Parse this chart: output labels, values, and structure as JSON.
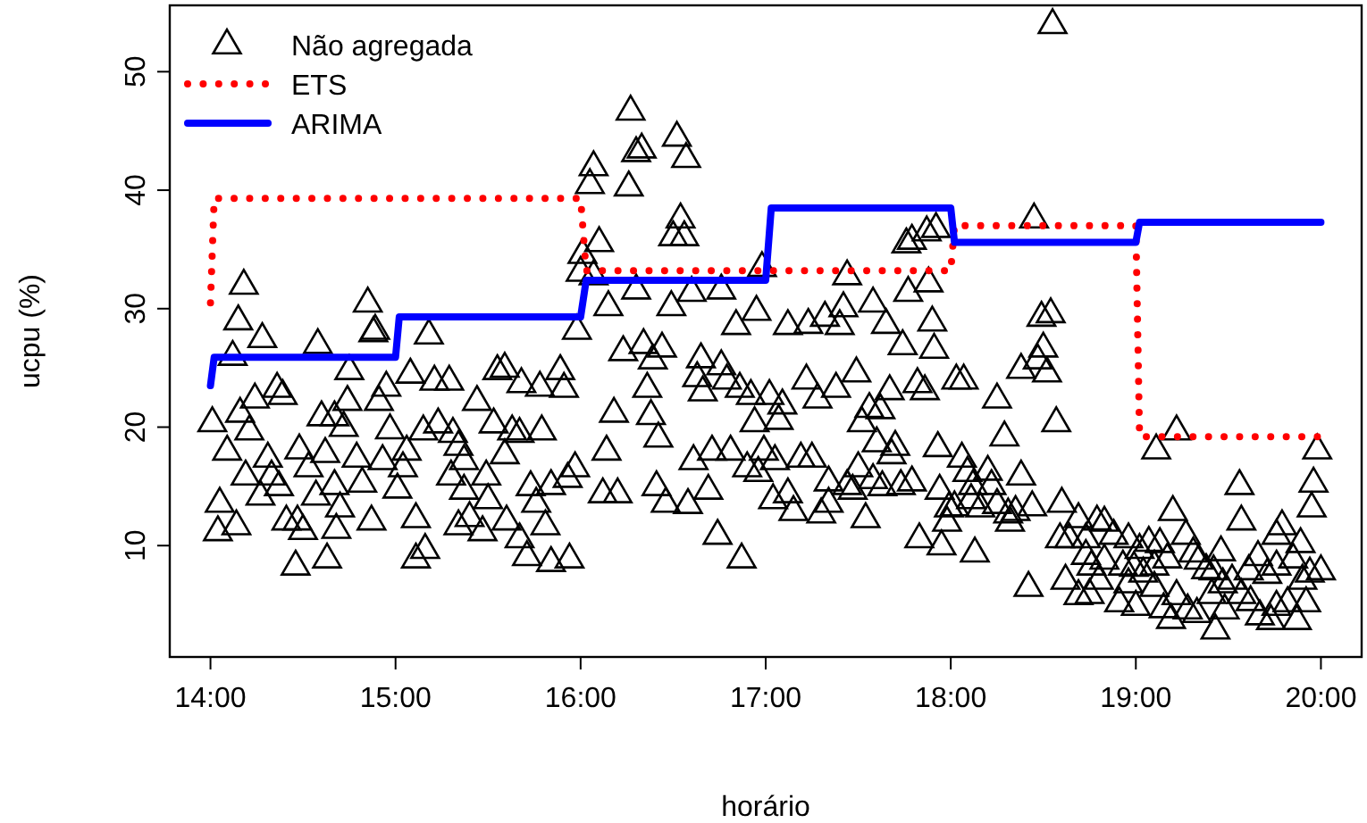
{
  "chart_data": {
    "type": "scatter",
    "xlabel": "horário",
    "ylabel": "ucpu (%)",
    "xlim": [
      13.78,
      20.22
    ],
    "ylim": [
      0.6,
      55.6
    ],
    "xticks": [
      {
        "value": 14,
        "label": "14:00"
      },
      {
        "value": 15,
        "label": "15:00"
      },
      {
        "value": 16,
        "label": "16:00"
      },
      {
        "value": 17,
        "label": "17:00"
      },
      {
        "value": 18,
        "label": "18:00"
      },
      {
        "value": 19,
        "label": "19:00"
      },
      {
        "value": 20,
        "label": "20:00"
      }
    ],
    "yticks": [
      10,
      20,
      30,
      40,
      50
    ],
    "grid": false,
    "legend": "top left",
    "series": [
      {
        "name": "Não agregada",
        "marker": "triangle",
        "color": "#000000",
        "x": [
          14.18,
          14.15,
          14.85,
          14.89,
          14.12,
          14.28,
          14.58,
          14.88,
          15.18,
          14.01,
          14.09,
          14.05,
          14.04,
          14.14,
          14.16,
          14.24,
          14.21,
          14.36,
          14.39,
          14.19,
          14.27,
          14.31,
          14.33,
          14.37,
          14.41,
          14.47,
          14.5,
          14.46,
          14.63,
          14.48,
          14.53,
          14.57,
          14.62,
          14.6,
          14.67,
          14.72,
          14.75,
          14.74,
          14.67,
          14.7,
          14.68,
          14.79,
          14.82,
          14.87,
          14.91,
          14.95,
          14.97,
          14.93,
          15.01,
          15.04,
          15.06,
          15.08,
          15.11,
          15.16,
          15.11,
          15.15,
          15.21,
          15.23,
          15.29,
          15.31,
          15.34,
          15.37,
          15.3,
          15.37,
          15.34,
          15.4,
          15.47,
          15.44,
          15.49,
          15.5,
          15.53,
          15.55,
          15.59,
          15.59,
          15.63,
          15.67,
          15.6,
          15.67,
          15.71,
          15.68,
          15.78,
          15.79,
          15.73,
          15.76,
          15.81,
          15.84,
          15.84,
          15.89,
          15.91,
          15.93,
          15.98,
          15.97,
          15.94,
          16.12,
          16.2,
          16.14,
          16.18,
          16.23,
          16.34,
          16.44,
          16.39,
          16.36,
          16.38,
          16.42,
          16.41,
          16.46,
          16.58,
          16.61,
          16.65,
          16.63,
          16.66,
          16.69,
          16.71,
          16.74,
          16.76,
          16.79,
          16.81,
          16.87,
          16.86,
          16.92,
          16.94,
          16.9,
          16.96,
          16.99,
          17.02,
          17.05,
          17.04,
          17.07,
          17.09,
          17.12,
          17.15,
          17.19,
          17.22,
          17.25,
          17.28,
          17.3,
          17.34,
          17.34,
          17.38,
          17.44,
          17.47,
          17.49,
          17.5,
          17.52,
          17.54,
          17.56,
          17.58,
          17.6,
          17.62,
          17.63,
          17.67,
          17.68,
          17.7,
          17.73,
          17.74,
          17.79,
          17.82,
          17.83,
          17.86,
          17.91,
          17.93,
          17.94,
          17.95,
          17.98,
          17.99,
          18.03,
          16.27,
          16.52,
          16.57,
          16.3,
          16.33,
          16.07,
          16.05,
          16.26,
          16.54,
          16.5,
          16.56,
          16.1,
          16.01,
          16.0,
          16.07,
          16.15,
          16.3,
          16.49,
          16.6,
          16.76,
          16.95,
          16.98,
          16.84,
          17.12,
          17.23,
          17.32,
          17.4,
          17.42,
          17.44,
          17.58,
          17.65,
          17.77,
          17.88,
          17.9,
          17.76,
          17.79,
          17.87,
          17.92,
          18.55,
          18.45,
          18.54,
          18.49,
          18.5,
          18.47,
          18.52,
          18.38,
          18.07,
          18.25,
          18.57,
          18.29,
          18.06,
          18.09,
          18.2,
          18.12,
          18.22,
          18.38,
          18.11,
          18.16,
          18.25,
          18.31,
          18.44,
          18.35,
          18.02,
          18.13,
          18.32,
          18.42,
          18.6,
          18.69,
          18.79,
          18.83,
          18.64,
          18.73,
          18.88,
          18.96,
          18.59,
          18.73,
          18.83,
          18.76,
          18.93,
          18.62,
          18.8,
          18.69,
          18.75,
          18.96,
          18.91,
          19.0,
          19.02,
          19.07,
          19.1,
          19.13,
          18.99,
          19.04,
          19.1,
          19.11,
          19.22,
          19.2,
          19.27,
          19.17,
          19.22,
          19.15,
          19.19,
          19.31,
          19.34,
          19.38,
          19.28,
          19.33,
          19.41,
          19.46,
          19.42,
          19.47,
          19.48,
          19.43,
          19.56,
          19.57,
          19.52,
          19.57,
          19.61,
          19.62,
          19.66,
          19.67,
          19.71,
          19.73,
          19.76,
          19.76,
          19.79,
          19.76,
          19.82,
          19.85,
          19.89,
          19.87,
          19.92,
          19.9,
          19.94,
          20.0,
          19.95,
          19.96,
          19.98
        ],
        "values": [
          32.0,
          29.0,
          30.5,
          28.2,
          26.0,
          27.5,
          27.0,
          28.0,
          27.8,
          20.4,
          18.0,
          13.6,
          11.2,
          11.7,
          21.2,
          22.4,
          19.7,
          23.3,
          22.7,
          15.9,
          14.2,
          17.4,
          15.9,
          15.0,
          12.1,
          12.1,
          11.3,
          8.3,
          8.9,
          18.1,
          16.6,
          14.2,
          17.8,
          20.9,
          20.9,
          20.0,
          24.8,
          22.2,
          15.1,
          13.2,
          11.4,
          17.4,
          15.3,
          12.1,
          22.2,
          23.4,
          19.8,
          17.2,
          14.8,
          16.6,
          18.0,
          24.5,
          8.9,
          9.7,
          12.3,
          19.7,
          23.9,
          20.3,
          23.9,
          19.5,
          18.4,
          17.2,
          15.9,
          14.7,
          11.7,
          12.4,
          11.2,
          22.2,
          15.9,
          13.9,
          20.3,
          24.8,
          25.0,
          17.7,
          19.7,
          19.5,
          12.1,
          10.6,
          9.1,
          23.7,
          23.4,
          19.7,
          15.0,
          13.6,
          11.7,
          8.6,
          15.1,
          24.8,
          23.3,
          15.7,
          28.2,
          16.6,
          8.9,
          14.4,
          14.4,
          18.0,
          21.2,
          26.4,
          27.0,
          26.7,
          25.7,
          23.3,
          21.0,
          19.1,
          15.0,
          13.6,
          13.5,
          17.2,
          25.8,
          24.2,
          23.0,
          14.7,
          18.0,
          10.9,
          25.2,
          24.0,
          18.0,
          8.9,
          23.3,
          22.7,
          20.4,
          16.6,
          16.2,
          18.0,
          22.7,
          17.2,
          13.9,
          20.6,
          21.9,
          14.4,
          12.9,
          17.4,
          24.0,
          17.4,
          22.4,
          12.7,
          15.4,
          13.6,
          23.3,
          15.1,
          14.7,
          24.6,
          16.6,
          20.4,
          12.3,
          21.6,
          15.6,
          18.7,
          21.5,
          15.0,
          23.1,
          17.7,
          18.4,
          15.1,
          26.9,
          15.4,
          23.7,
          10.6,
          23.1,
          26.6,
          18.3,
          14.7,
          10.0,
          12.0,
          13.2,
          24.0,
          46.7,
          44.5,
          42.7,
          43.2,
          43.5,
          42.0,
          40.5,
          40.3,
          37.6,
          36.1,
          36.1,
          35.6,
          34.6,
          33.1,
          32.8,
          30.2,
          31.6,
          30.2,
          31.4,
          31.6,
          29.8,
          33.5,
          28.6,
          28.6,
          28.7,
          29.3,
          28.6,
          30.1,
          32.8,
          30.5,
          28.7,
          31.4,
          32.2,
          28.9,
          35.5,
          35.8,
          36.5,
          36.8,
          54.0,
          37.6,
          29.6,
          29.3,
          26.7,
          25.7,
          24.6,
          24.9,
          24.0,
          22.4,
          20.4,
          19.2,
          17.4,
          16.2,
          16.3,
          15.1,
          15.1,
          15.9,
          13.9,
          13.2,
          13.5,
          12.7,
          13.3,
          12.9,
          13.3,
          9.4,
          12.0,
          6.5,
          13.6,
          12.3,
          12.1,
          12.0,
          10.6,
          10.6,
          10.9,
          10.6,
          10.6,
          9.2,
          8.8,
          8.3,
          8.3,
          7.1,
          7.1,
          5.8,
          5.9,
          6.8,
          5.2,
          4.9,
          9.7,
          10.3,
          8.3,
          10.2,
          8.2,
          7.7,
          6.5,
          18.1,
          19.7,
          12.9,
          10.9,
          8.9,
          5.8,
          4.7,
          3.8,
          9.4,
          8.8,
          8.0,
          4.6,
          4.3,
          5.9,
          9.5,
          7.9,
          6.8,
          4.6,
          2.9,
          15.1,
          12.1,
          7.1,
          5.9,
          7.9,
          5.3,
          9.1,
          4.1,
          7.6,
          3.7,
          8.3,
          10.9,
          11.7,
          4.9,
          5.2,
          8.9,
          10.2,
          3.7,
          5.2,
          7.1,
          7.7,
          7.9,
          13.2,
          15.3,
          18.1
        ]
      },
      {
        "name": "ETS",
        "type": "line",
        "line_style": "dotted",
        "color": "#ff0000",
        "x": [
          14.0,
          14.02,
          16.0,
          16.03,
          18.0,
          18.02,
          19.0,
          19.02,
          20.0
        ],
        "values": [
          30.5,
          39.3,
          39.3,
          33.2,
          33.2,
          37.0,
          37.0,
          19.2,
          19.2
        ]
      },
      {
        "name": "ARIMA",
        "type": "line",
        "line_style": "solid",
        "color": "#0000ff",
        "x": [
          14.0,
          14.02,
          15.0,
          15.02,
          16.0,
          16.03,
          17.0,
          17.03,
          18.0,
          18.02,
          19.0,
          19.02,
          20.0
        ],
        "values": [
          23.5,
          25.9,
          25.9,
          29.3,
          29.3,
          32.4,
          32.4,
          38.5,
          38.5,
          35.6,
          35.6,
          37.3,
          37.3
        ]
      }
    ]
  }
}
